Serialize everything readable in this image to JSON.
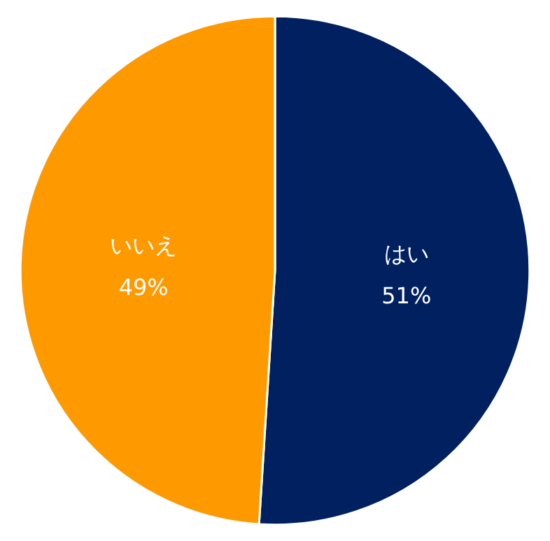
{
  "chart_data": {
    "type": "pie",
    "categories": [
      "はい",
      "いいえ"
    ],
    "values": [
      51,
      49
    ],
    "colors": [
      "#002060",
      "#ff9900"
    ],
    "value_labels": [
      "51%",
      "49%"
    ],
    "legend": false
  }
}
